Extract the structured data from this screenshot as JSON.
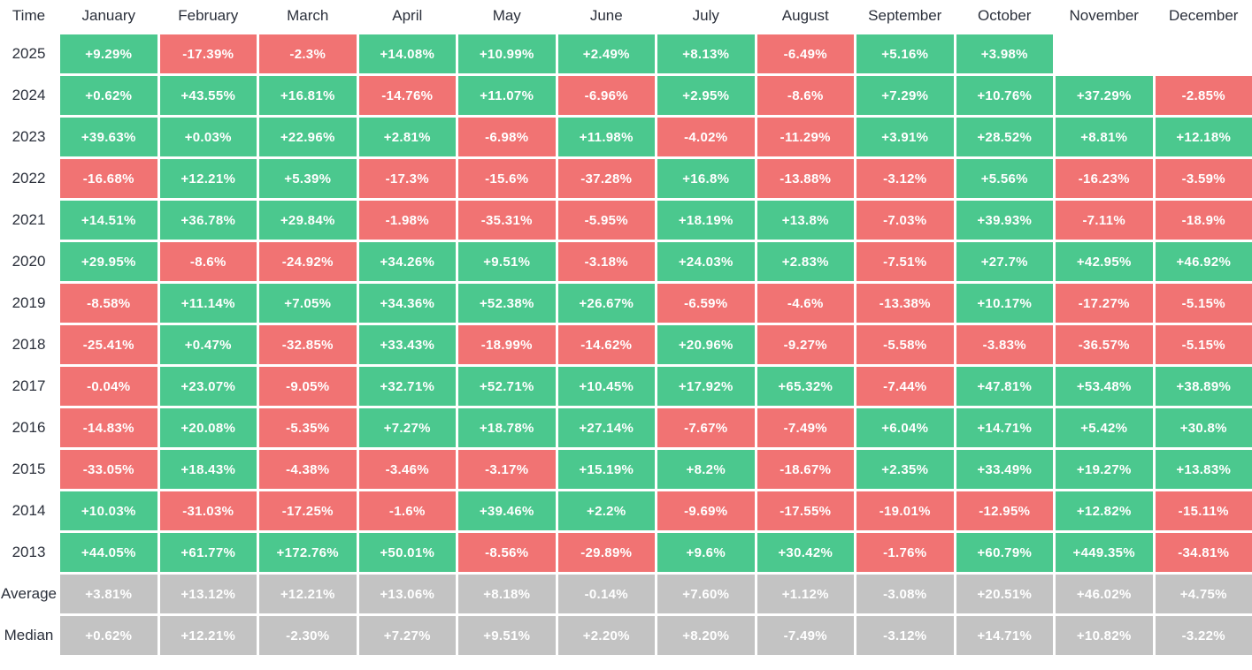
{
  "header": {
    "time_label": "Time",
    "months": [
      "January",
      "February",
      "March",
      "April",
      "May",
      "June",
      "July",
      "August",
      "September",
      "October",
      "November",
      "December"
    ]
  },
  "rows": [
    {
      "label": "2025",
      "type": "year",
      "cells": [
        "+9.29%",
        "-17.39%",
        "-2.3%",
        "+14.08%",
        "+10.99%",
        "+2.49%",
        "+8.13%",
        "-6.49%",
        "+5.16%",
        "+3.98%",
        "",
        ""
      ]
    },
    {
      "label": "2024",
      "type": "year",
      "cells": [
        "+0.62%",
        "+43.55%",
        "+16.81%",
        "-14.76%",
        "+11.07%",
        "-6.96%",
        "+2.95%",
        "-8.6%",
        "+7.29%",
        "+10.76%",
        "+37.29%",
        "-2.85%"
      ]
    },
    {
      "label": "2023",
      "type": "year",
      "cells": [
        "+39.63%",
        "+0.03%",
        "+22.96%",
        "+2.81%",
        "-6.98%",
        "+11.98%",
        "-4.02%",
        "-11.29%",
        "+3.91%",
        "+28.52%",
        "+8.81%",
        "+12.18%"
      ]
    },
    {
      "label": "2022",
      "type": "year",
      "cells": [
        "-16.68%",
        "+12.21%",
        "+5.39%",
        "-17.3%",
        "-15.6%",
        "-37.28%",
        "+16.8%",
        "-13.88%",
        "-3.12%",
        "+5.56%",
        "-16.23%",
        "-3.59%"
      ]
    },
    {
      "label": "2021",
      "type": "year",
      "cells": [
        "+14.51%",
        "+36.78%",
        "+29.84%",
        "-1.98%",
        "-35.31%",
        "-5.95%",
        "+18.19%",
        "+13.8%",
        "-7.03%",
        "+39.93%",
        "-7.11%",
        "-18.9%"
      ]
    },
    {
      "label": "2020",
      "type": "year",
      "cells": [
        "+29.95%",
        "-8.6%",
        "-24.92%",
        "+34.26%",
        "+9.51%",
        "-3.18%",
        "+24.03%",
        "+2.83%",
        "-7.51%",
        "+27.7%",
        "+42.95%",
        "+46.92%"
      ]
    },
    {
      "label": "2019",
      "type": "year",
      "cells": [
        "-8.58%",
        "+11.14%",
        "+7.05%",
        "+34.36%",
        "+52.38%",
        "+26.67%",
        "-6.59%",
        "-4.6%",
        "-13.38%",
        "+10.17%",
        "-17.27%",
        "-5.15%"
      ]
    },
    {
      "label": "2018",
      "type": "year",
      "cells": [
        "-25.41%",
        "+0.47%",
        "-32.85%",
        "+33.43%",
        "-18.99%",
        "-14.62%",
        "+20.96%",
        "-9.27%",
        "-5.58%",
        "-3.83%",
        "-36.57%",
        "-5.15%"
      ]
    },
    {
      "label": "2017",
      "type": "year",
      "cells": [
        "-0.04%",
        "+23.07%",
        "-9.05%",
        "+32.71%",
        "+52.71%",
        "+10.45%",
        "+17.92%",
        "+65.32%",
        "-7.44%",
        "+47.81%",
        "+53.48%",
        "+38.89%"
      ]
    },
    {
      "label": "2016",
      "type": "year",
      "cells": [
        "-14.83%",
        "+20.08%",
        "-5.35%",
        "+7.27%",
        "+18.78%",
        "+27.14%",
        "-7.67%",
        "-7.49%",
        "+6.04%",
        "+14.71%",
        "+5.42%",
        "+30.8%"
      ]
    },
    {
      "label": "2015",
      "type": "year",
      "cells": [
        "-33.05%",
        "+18.43%",
        "-4.38%",
        "-3.46%",
        "-3.17%",
        "+15.19%",
        "+8.2%",
        "-18.67%",
        "+2.35%",
        "+33.49%",
        "+19.27%",
        "+13.83%"
      ]
    },
    {
      "label": "2014",
      "type": "year",
      "cells": [
        "+10.03%",
        "-31.03%",
        "-17.25%",
        "-1.6%",
        "+39.46%",
        "+2.2%",
        "-9.69%",
        "-17.55%",
        "-19.01%",
        "-12.95%",
        "+12.82%",
        "-15.11%"
      ]
    },
    {
      "label": "2013",
      "type": "year",
      "cells": [
        "+44.05%",
        "+61.77%",
        "+172.76%",
        "+50.01%",
        "-8.56%",
        "-29.89%",
        "+9.6%",
        "+30.42%",
        "-1.76%",
        "+60.79%",
        "+449.35%",
        "-34.81%"
      ]
    },
    {
      "label": "Average",
      "type": "stat",
      "cells": [
        "+3.81%",
        "+13.12%",
        "+12.21%",
        "+13.06%",
        "+8.18%",
        "-0.14%",
        "+7.60%",
        "+1.12%",
        "-3.08%",
        "+20.51%",
        "+46.02%",
        "+4.75%"
      ]
    },
    {
      "label": "Median",
      "type": "stat",
      "cells": [
        "+0.62%",
        "+12.21%",
        "-2.30%",
        "+7.27%",
        "+9.51%",
        "+2.20%",
        "+8.20%",
        "-7.49%",
        "-3.12%",
        "+14.71%",
        "+10.82%",
        "-3.22%"
      ]
    }
  ],
  "colors": {
    "positive": "#4bc88e",
    "negative": "#f17373",
    "neutral": "#c3c3c3",
    "cell_text": "#ffffff",
    "label_text": "#2b303b"
  },
  "chart_data": {
    "type": "heatmap",
    "title": "Monthly returns heatmap by year (%)",
    "columns": [
      "January",
      "February",
      "March",
      "April",
      "May",
      "June",
      "July",
      "August",
      "September",
      "October",
      "November",
      "December"
    ],
    "rows": [
      "2025",
      "2024",
      "2023",
      "2022",
      "2021",
      "2020",
      "2019",
      "2018",
      "2017",
      "2016",
      "2015",
      "2014",
      "2013",
      "Average",
      "Median"
    ],
    "values": [
      [
        9.29,
        -17.39,
        -2.3,
        14.08,
        10.99,
        2.49,
        8.13,
        -6.49,
        5.16,
        3.98,
        null,
        null
      ],
      [
        0.62,
        43.55,
        16.81,
        -14.76,
        11.07,
        -6.96,
        2.95,
        -8.6,
        7.29,
        10.76,
        37.29,
        -2.85
      ],
      [
        39.63,
        0.03,
        22.96,
        2.81,
        -6.98,
        11.98,
        -4.02,
        -11.29,
        3.91,
        28.52,
        8.81,
        12.18
      ],
      [
        -16.68,
        12.21,
        5.39,
        -17.3,
        -15.6,
        -37.28,
        16.8,
        -13.88,
        -3.12,
        5.56,
        -16.23,
        -3.59
      ],
      [
        14.51,
        36.78,
        29.84,
        -1.98,
        -35.31,
        -5.95,
        18.19,
        13.8,
        -7.03,
        39.93,
        -7.11,
        -18.9
      ],
      [
        29.95,
        -8.6,
        -24.92,
        34.26,
        9.51,
        -3.18,
        24.03,
        2.83,
        -7.51,
        27.7,
        42.95,
        46.92
      ],
      [
        -8.58,
        11.14,
        7.05,
        34.36,
        52.38,
        26.67,
        -6.59,
        -4.6,
        -13.38,
        10.17,
        -17.27,
        -5.15
      ],
      [
        -25.41,
        0.47,
        -32.85,
        33.43,
        -18.99,
        -14.62,
        20.96,
        -9.27,
        -5.58,
        -3.83,
        -36.57,
        -5.15
      ],
      [
        -0.04,
        23.07,
        -9.05,
        32.71,
        52.71,
        10.45,
        17.92,
        65.32,
        -7.44,
        47.81,
        53.48,
        38.89
      ],
      [
        -14.83,
        20.08,
        -5.35,
        7.27,
        18.78,
        27.14,
        -7.67,
        -7.49,
        6.04,
        14.71,
        5.42,
        30.8
      ],
      [
        -33.05,
        18.43,
        -4.38,
        -3.46,
        -3.17,
        15.19,
        8.2,
        -18.67,
        2.35,
        33.49,
        19.27,
        13.83
      ],
      [
        10.03,
        -31.03,
        -17.25,
        -1.6,
        39.46,
        2.2,
        -9.69,
        -17.55,
        -19.01,
        -12.95,
        12.82,
        -15.11
      ],
      [
        44.05,
        61.77,
        172.76,
        50.01,
        -8.56,
        -29.89,
        9.6,
        30.42,
        -1.76,
        60.79,
        449.35,
        -34.81
      ],
      [
        3.81,
        13.12,
        12.21,
        13.06,
        8.18,
        -0.14,
        7.6,
        1.12,
        -3.08,
        20.51,
        46.02,
        4.75
      ],
      [
        0.62,
        12.21,
        -2.3,
        7.27,
        9.51,
        2.2,
        8.2,
        -7.49,
        -3.12,
        14.71,
        10.82,
        -3.22
      ]
    ],
    "color_coding": "green = positive month, red = negative month, gray = Average/Median statistic rows",
    "legend_position": "none",
    "grid": false
  }
}
